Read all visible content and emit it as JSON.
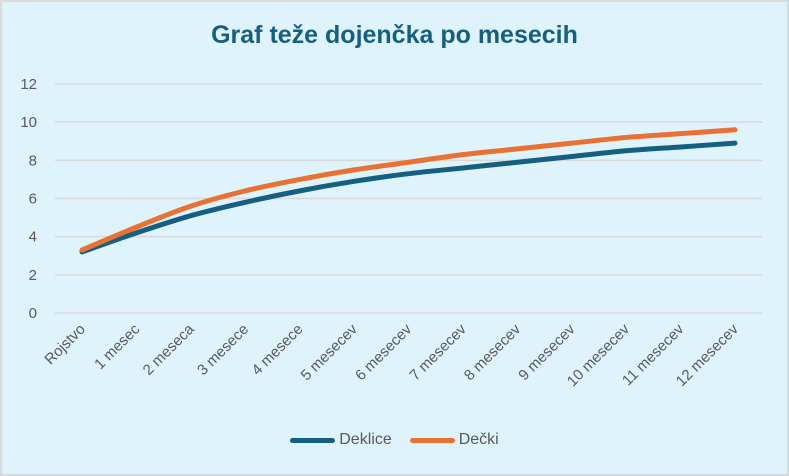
{
  "chart_data": {
    "type": "line",
    "title": "Graf teže dojenčka po mesecih",
    "xlabel": "",
    "ylabel": "",
    "ylim": [
      0,
      12
    ],
    "yticks": [
      0,
      2,
      4,
      6,
      8,
      10,
      12
    ],
    "grid": true,
    "legend_position": "bottom",
    "categories": [
      "Rojstvo",
      "1 mesec",
      "2 meseca",
      "3 mesece",
      "4 mesece",
      "5 mesecev",
      "6 mesecev",
      "7 mesecev",
      "8 mesecev",
      "9 mesecev",
      "10 mesecev",
      "11 mesecev",
      "12 mesecev"
    ],
    "series": [
      {
        "name": "Deklice",
        "color": "#156082",
        "values": [
          3.2,
          4.2,
          5.1,
          5.8,
          6.4,
          6.9,
          7.3,
          7.6,
          7.9,
          8.2,
          8.5,
          8.7,
          8.9
        ]
      },
      {
        "name": "Dečki",
        "color": "#e97132",
        "values": [
          3.3,
          4.5,
          5.6,
          6.4,
          7.0,
          7.5,
          7.9,
          8.3,
          8.6,
          8.9,
          9.2,
          9.4,
          9.6
        ]
      }
    ]
  },
  "colors": {
    "background": "#dff3fd",
    "border": "#d9d9d9",
    "gridline": "#d9d9d9",
    "title": "#145f82",
    "axis_text": "#595959"
  }
}
